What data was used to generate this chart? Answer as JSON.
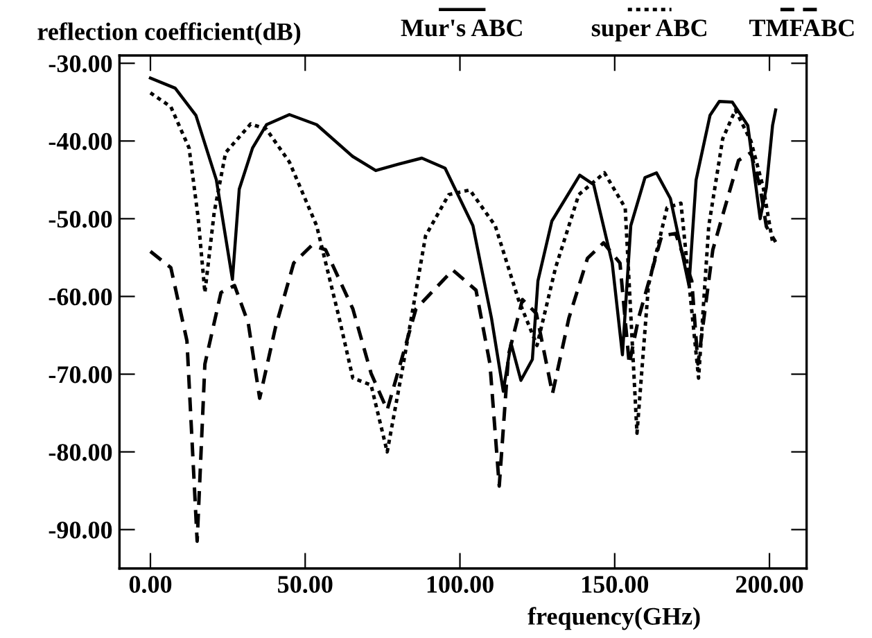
{
  "chart_data": {
    "type": "line",
    "xlabel": "frequency(GHz)",
    "ylabel": "reflection coefficient(dB)",
    "xlim": [
      -10,
      212
    ],
    "ylim": [
      -95,
      -29
    ],
    "xticks": [
      {
        "value": 0,
        "label": "0.00"
      },
      {
        "value": 50,
        "label": "50.00"
      },
      {
        "value": 100,
        "label": "100.00"
      },
      {
        "value": 150,
        "label": "150.00"
      },
      {
        "value": 200,
        "label": "200.00"
      }
    ],
    "yticks": [
      {
        "value": -30,
        "label": "-30.00"
      },
      {
        "value": -40,
        "label": "-40.00"
      },
      {
        "value": -50,
        "label": "-50.00"
      },
      {
        "value": -60,
        "label": "-60.00"
      },
      {
        "value": -70,
        "label": "-70.00"
      },
      {
        "value": -80,
        "label": "-80.00"
      },
      {
        "value": -90,
        "label": "-90.00"
      }
    ],
    "grid": false,
    "legend": "top",
    "marker": "none",
    "series": [
      {
        "name": "Mur's ABC",
        "color": "#000000",
        "line_style": "solid",
        "x": [
          0,
          8,
          14.7,
          21.3,
          26.5,
          28.7,
          33,
          37.5,
          44.9,
          53.7,
          65.4,
          72.8,
          80,
          87.7,
          95.2,
          104.2,
          110.2,
          114,
          116.5,
          119.7,
          123.4,
          125.2,
          129.7,
          138.7,
          143.2,
          149.2,
          152.5,
          155.2,
          159.8,
          163.5,
          168,
          174,
          176.3,
          180.8,
          183.8,
          188,
          193,
          197,
          199,
          201,
          202
        ],
        "values": [
          -31.9,
          -33.2,
          -36.7,
          -45,
          -57.8,
          -46.2,
          -40.9,
          -37.9,
          -36.6,
          -37.9,
          -42,
          -43.8,
          -43,
          -42.2,
          -43.5,
          -50.9,
          -62.8,
          -72.2,
          -66,
          -70.8,
          -68.1,
          -58,
          -50.3,
          -44.4,
          -45.6,
          -55.7,
          -67.5,
          -50.9,
          -44.7,
          -44.1,
          -47.4,
          -58.6,
          -45,
          -36.7,
          -34.9,
          -35,
          -38,
          -50,
          -46,
          -38,
          -36
        ]
      },
      {
        "name": "super ABC",
        "color": "#000000",
        "line_style": "dotted",
        "x": [
          0,
          6.6,
          12.5,
          15.4,
          17.6,
          20.6,
          24.3,
          32.4,
          37.5,
          44.9,
          53.7,
          61,
          65.4,
          71.3,
          76.5,
          81.4,
          88.9,
          96.4,
          103.2,
          111.4,
          118.9,
          124.9,
          130.9,
          138.4,
          146.7,
          153.4,
          157.2,
          160.9,
          166.9,
          171.4,
          177.1,
          180.4,
          184.9,
          189,
          194,
          198,
          201
        ],
        "values": [
          -33.8,
          -35.6,
          -40.9,
          -49.8,
          -59.5,
          -49.2,
          -41.5,
          -37.8,
          -38.5,
          -42.7,
          -50.9,
          -62.8,
          -70.5,
          -71.4,
          -80,
          -69.4,
          -52.2,
          -46.9,
          -46.3,
          -50.9,
          -60.4,
          -66.3,
          -56.3,
          -46.9,
          -44.1,
          -48.6,
          -77.6,
          -58.6,
          -48.6,
          -48,
          -70.5,
          -50.9,
          -39.7,
          -36,
          -40,
          -46,
          -53
        ]
      },
      {
        "name": "TMFABC",
        "color": "#000000",
        "line_style": "dashed",
        "x": [
          0,
          6.6,
          11.8,
          15.1,
          17.6,
          22.8,
          27.2,
          31.6,
          35.3,
          40.4,
          46.3,
          52.2,
          56.6,
          65.4,
          71.3,
          76.5,
          85.8,
          97.7,
          105.2,
          109.7,
          112.7,
          115.7,
          120.2,
          124.7,
          129.9,
          135.2,
          141.2,
          146.4,
          151.7,
          154.7,
          157.7,
          165.2,
          169.7,
          174.9,
          176.9,
          181.7,
          184.7,
          190,
          194,
          197,
          199,
          202
        ],
        "values": [
          -54.2,
          -56.3,
          -65.7,
          -91.5,
          -68.7,
          -59.5,
          -58.6,
          -63.4,
          -73.1,
          -64,
          -55.7,
          -53.4,
          -54,
          -61.6,
          -69.9,
          -74.6,
          -61.6,
          -56.6,
          -59.2,
          -68.7,
          -84.4,
          -67.5,
          -60.4,
          -62.2,
          -72.5,
          -62.8,
          -55.1,
          -53.1,
          -55.7,
          -68.7,
          -62.8,
          -52.2,
          -51.9,
          -58,
          -68.7,
          -54,
          -49.8,
          -42.5,
          -41.5,
          -46,
          -51,
          -53
        ]
      }
    ]
  }
}
